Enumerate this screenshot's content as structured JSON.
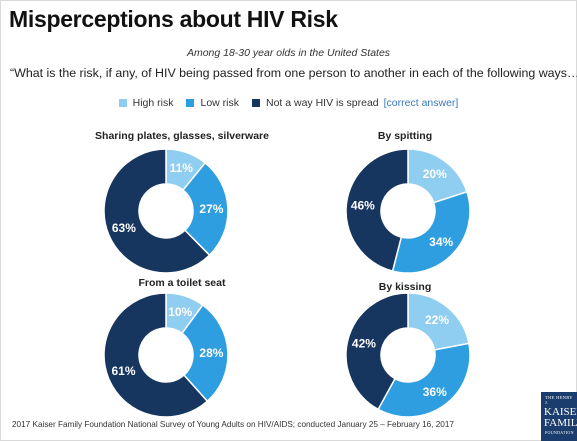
{
  "title": "Misperceptions about HIV Risk",
  "subtitle": "Among 18-30 year olds in the United States",
  "question": "“What is the risk, if any, of HIV being passed from one person to another in each of the following ways…”",
  "legend": {
    "items": [
      {
        "label": "High risk",
        "color": "#8fcdf1"
      },
      {
        "label": "Low risk",
        "color": "#2f9ee0"
      },
      {
        "label": "Not a way HIV is spread",
        "color": "#16365f"
      }
    ],
    "note": "[correct answer]"
  },
  "source": "2017 Kaiser Family Foundation National Survey of Young Adults on HIV/AIDS; conducted January 25 – February 16, 2017",
  "logo": {
    "line1": "THE HENRY J.",
    "line2": "KAISER",
    "line3": "FAMILY",
    "line4": "FOUNDATION"
  },
  "chart_data": [
    {
      "type": "pie",
      "title": "Sharing plates, glasses, silverware",
      "labels": [
        "High risk",
        "Low risk",
        "Not a way HIV is spread"
      ],
      "values": [
        11,
        27,
        63
      ],
      "value_labels": [
        "11%",
        "27%",
        "63%"
      ]
    },
    {
      "type": "pie",
      "title": "By spitting",
      "labels": [
        "High risk",
        "Low risk",
        "Not a way HIV is spread"
      ],
      "values": [
        20,
        34,
        46
      ],
      "value_labels": [
        "20%",
        "34%",
        "46%"
      ]
    },
    {
      "type": "pie",
      "title": "From a toilet seat",
      "labels": [
        "High risk",
        "Low risk",
        "Not a way HIV is spread"
      ],
      "values": [
        10,
        28,
        61
      ],
      "value_labels": [
        "10%",
        "28%",
        "61%"
      ]
    },
    {
      "type": "pie",
      "title": "By kissing",
      "labels": [
        "High risk",
        "Low risk",
        "Not a way HIV is spread"
      ],
      "values": [
        22,
        36,
        42
      ],
      "value_labels": [
        "22%",
        "36%",
        "42%"
      ]
    }
  ]
}
